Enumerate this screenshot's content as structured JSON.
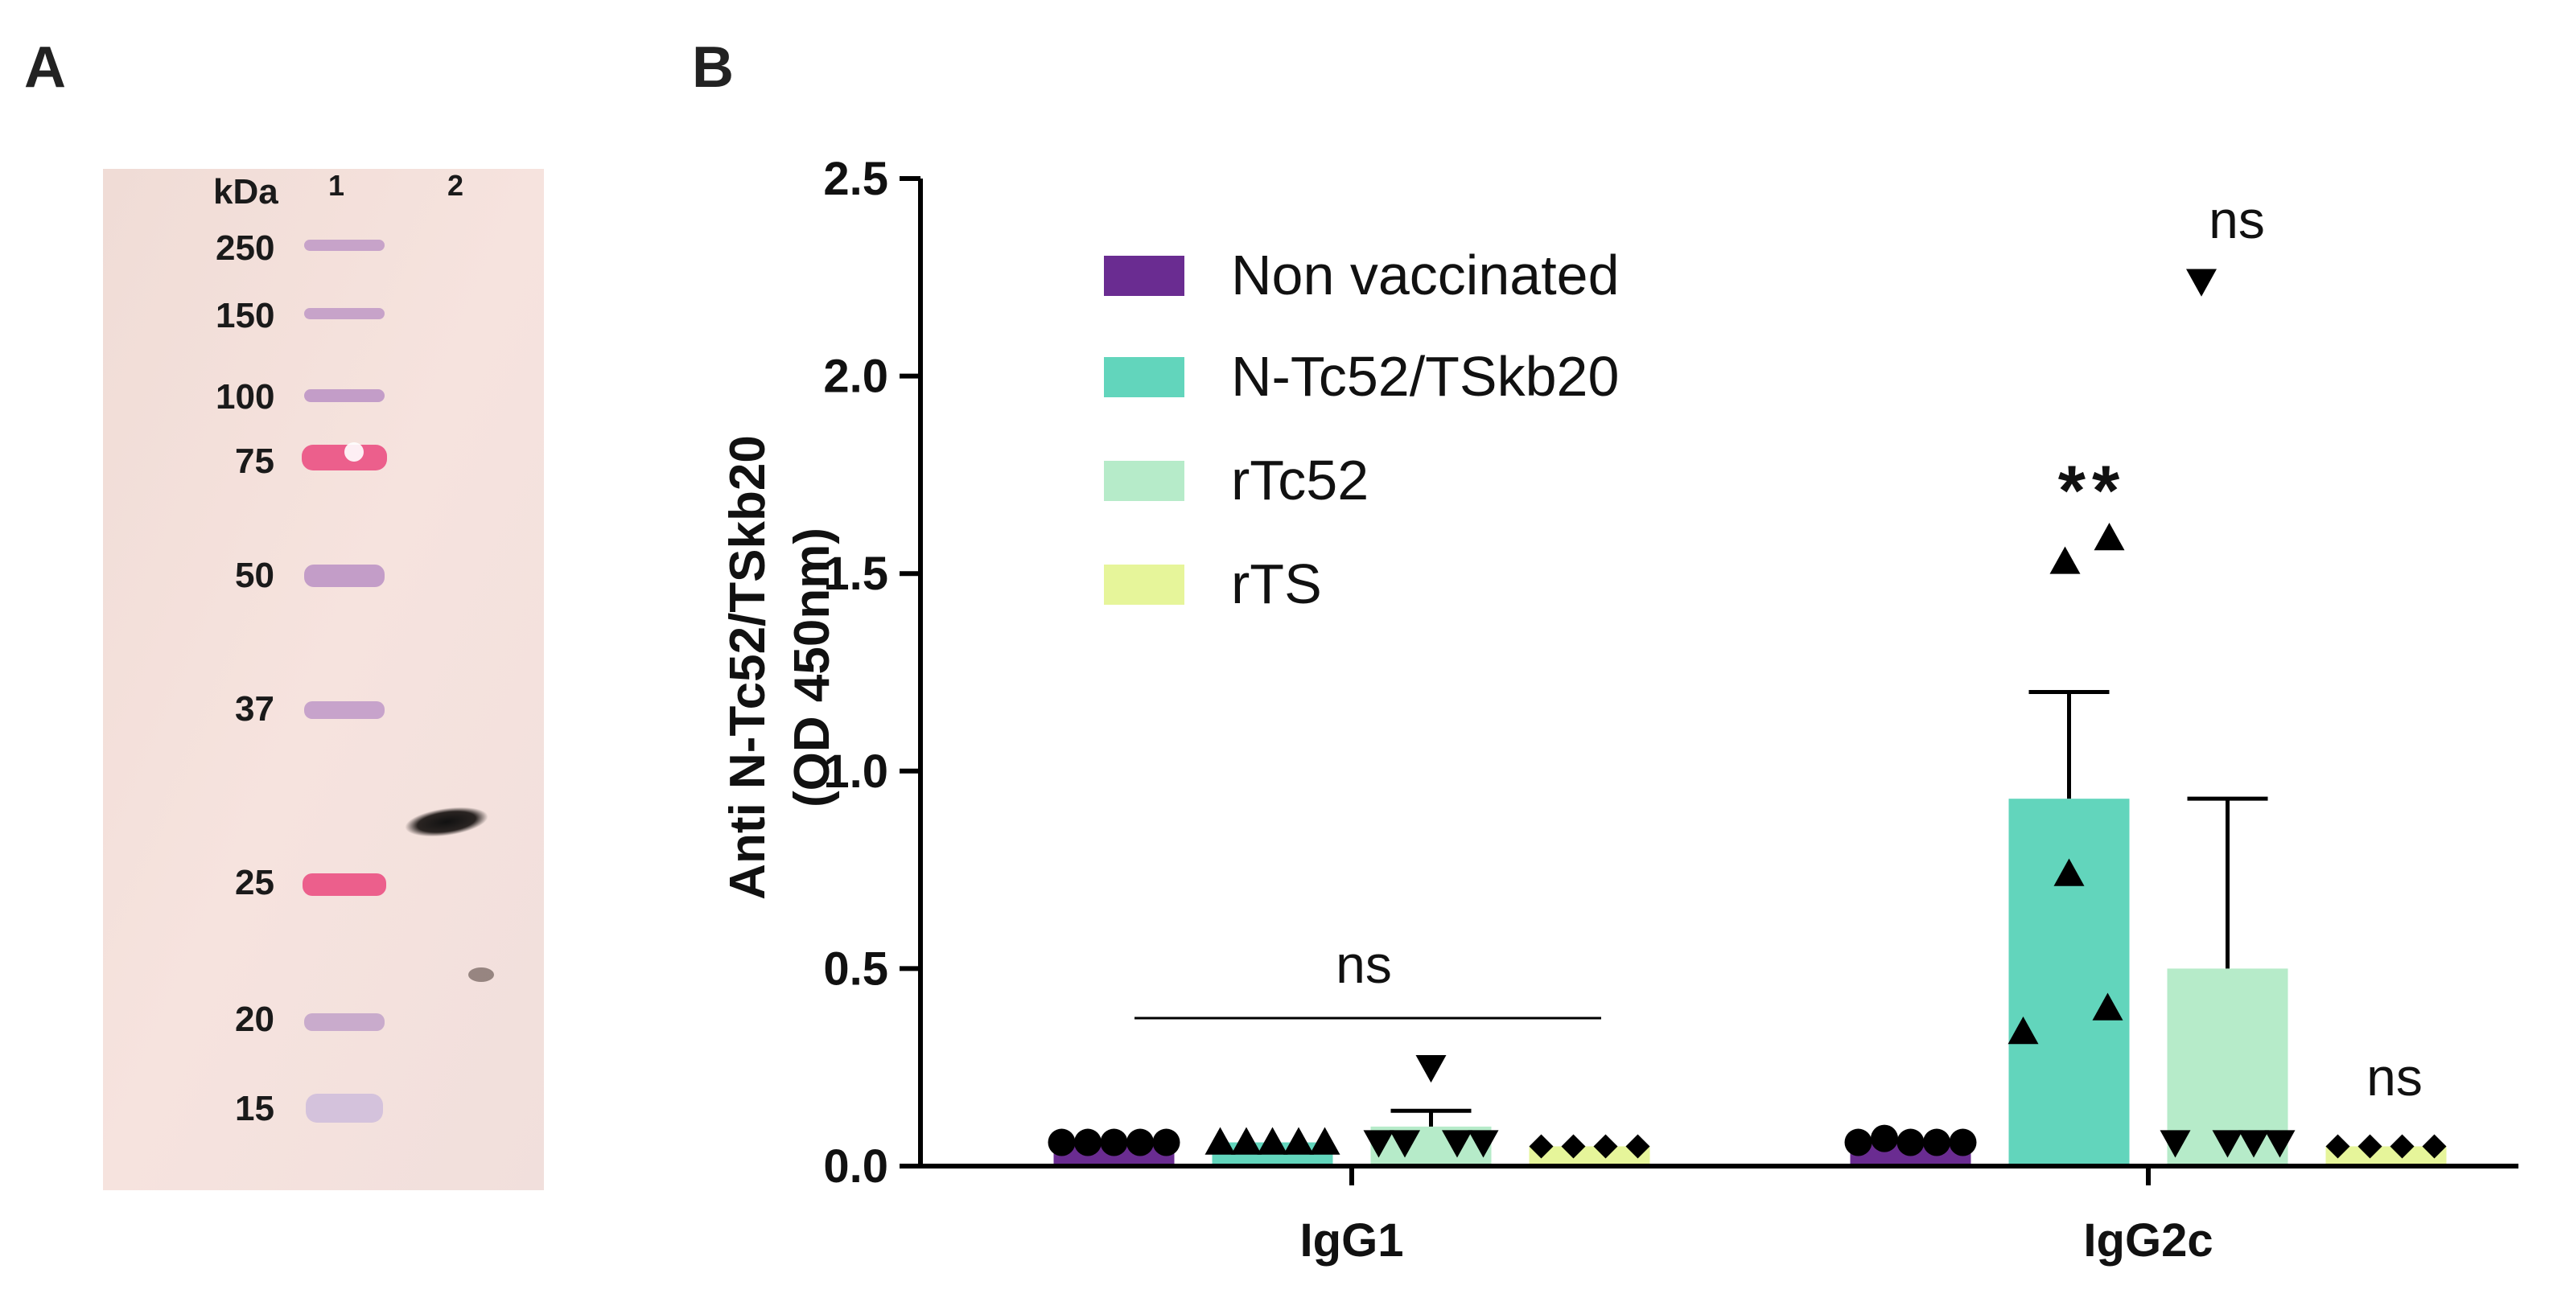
{
  "panels": {
    "a_label": "A",
    "b_label": "B"
  },
  "blot": {
    "unit_label": "kDa",
    "lanes": [
      "1",
      "2"
    ],
    "markers": [
      "250",
      "150",
      "100",
      "75",
      "50",
      "37",
      "25",
      "20",
      "15"
    ]
  },
  "chart_data": {
    "type": "bar",
    "title": "",
    "xlabel": "",
    "ylabel_line1": "Anti N-Tc52/TSkb20",
    "ylabel_line2": "(OD 450nm)",
    "ylim": [
      0,
      2.5
    ],
    "yticks": [
      "0.0",
      "0.5",
      "1.0",
      "1.5",
      "2.0",
      "2.5"
    ],
    "categories": [
      "IgG1",
      "IgG2c"
    ],
    "series": [
      {
        "name": "Non vaccinated",
        "color": "#6a2c91",
        "marker": "circle",
        "values": [
          0.06,
          0.06
        ],
        "errors": [
          0.0,
          0.0
        ],
        "points": [
          [
            0.06,
            0.06,
            0.06,
            0.06,
            0.06
          ],
          [
            0.06,
            0.07,
            0.06,
            0.06,
            0.06
          ]
        ]
      },
      {
        "name": "N-Tc52/TSkb20",
        "color": "#62d5bc",
        "marker": "triangle-up",
        "values": [
          0.06,
          0.93
        ],
        "errors": [
          0.0,
          0.27
        ],
        "points": [
          [
            0.06,
            0.06,
            0.06,
            0.06,
            0.06
          ],
          [
            0.34,
            0.74,
            1.53,
            1.59,
            0.4
          ]
        ]
      },
      {
        "name": "rTc52",
        "color": "#b6ebc9",
        "marker": "triangle-down",
        "values": [
          0.1,
          0.5
        ],
        "errors": [
          0.04,
          0.43
        ],
        "points": [
          [
            0.06,
            0.06,
            0.25,
            0.06,
            0.06
          ],
          [
            0.06,
            2.24,
            0.06,
            0.06,
            0.06
          ]
        ]
      },
      {
        "name": "rTS",
        "color": "#e6f59a",
        "marker": "diamond",
        "values": [
          0.05,
          0.05
        ],
        "errors": [
          0.0,
          0.0
        ],
        "points": [
          [
            0.05,
            0.05,
            0.05,
            0.05
          ],
          [
            0.05,
            0.05,
            0.05,
            0.05
          ]
        ]
      }
    ],
    "annotations": {
      "igg1_ns": "ns",
      "igg2c_rtc52_ns": "ns",
      "igg2c_rts_ns": "ns",
      "igg2c_ntc_sig": "**"
    },
    "legend_position": "top-left"
  }
}
